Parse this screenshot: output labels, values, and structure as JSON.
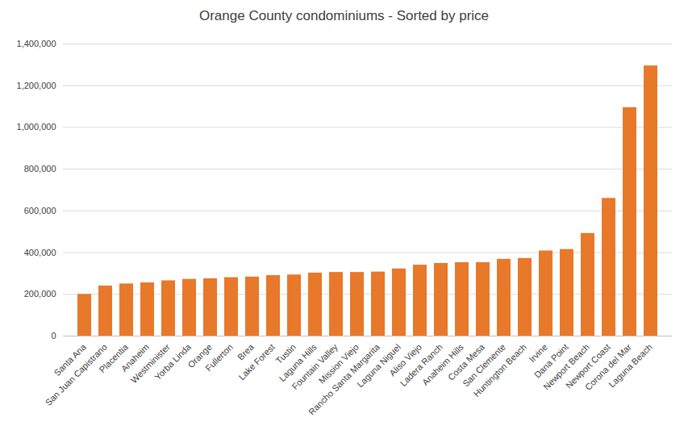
{
  "chart_data": {
    "type": "bar",
    "title": "Orange County condominiums - Sorted by price",
    "categories": [
      "Santa Ana",
      "San Juan Capistrano",
      "Placentia",
      "Anaheim",
      "Westminister",
      "Yorba Linda",
      "Orange",
      "Fullerton",
      "Brea",
      "Lake Forest",
      "Tustin",
      "Laguna Hills",
      "Fountain Valley",
      "Mission Viejo",
      "Rancho Santa Margarita",
      "Laguna Niguel",
      "Aliso Viejo",
      "Ladera Ranch",
      "Anaheim Hills",
      "Costa Mesa",
      "San Clemente",
      "Huntington Beach",
      "Irvine",
      "Dana Point",
      "Newport Beach",
      "Newport Coast",
      "Corona del Mar",
      "Laguna Beach"
    ],
    "values": [
      200000,
      240000,
      250000,
      255000,
      265000,
      272000,
      275000,
      280000,
      283000,
      290000,
      293000,
      302000,
      305000,
      305000,
      307000,
      322000,
      340000,
      348000,
      352000,
      352000,
      368000,
      372000,
      408000,
      415000,
      492000,
      660000,
      1095000,
      1295000
    ],
    "color": "#e8782a",
    "ylim": [
      0,
      1400000
    ],
    "yticks": [
      0,
      {
        "value": 200000,
        "label": "200,000"
      },
      {
        "value": 400000,
        "label": "400,000"
      },
      {
        "value": 600000,
        "label": "600,000"
      },
      {
        "value": 800000,
        "label": "800,000"
      },
      {
        "value": 1000000,
        "label": "1,000,000"
      },
      {
        "value": 1200000,
        "label": "1,200,000"
      },
      {
        "value": 1400000,
        "label": "1,400,000"
      }
    ],
    "grid": true
  }
}
